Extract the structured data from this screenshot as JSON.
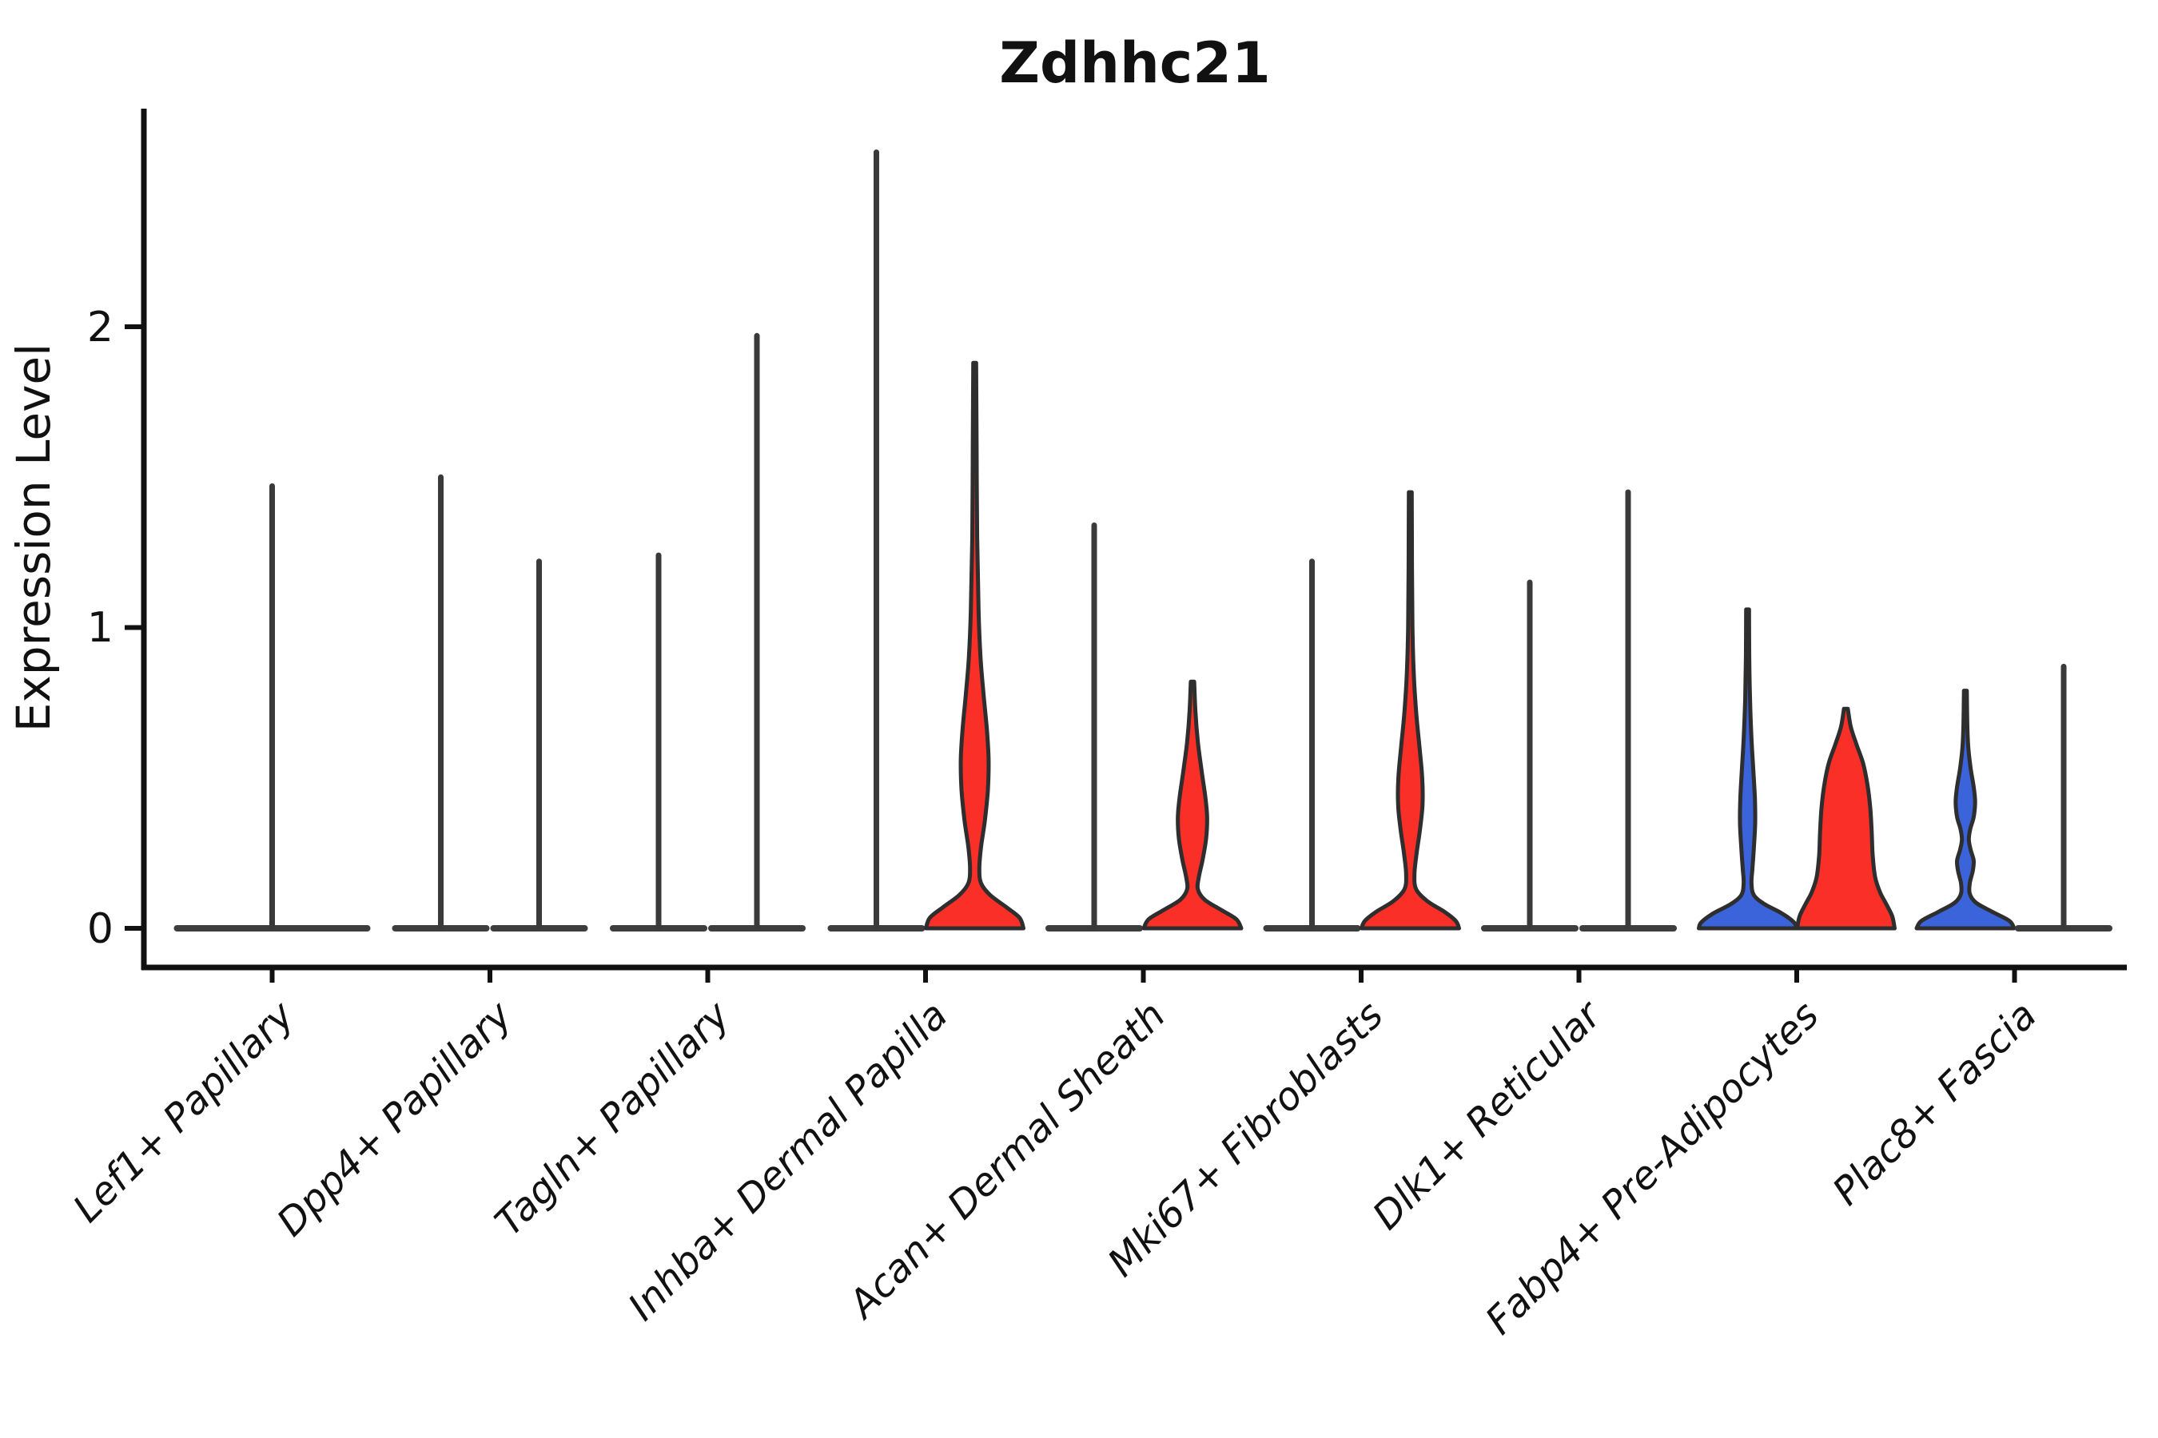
{
  "title": "Zdhhc21",
  "ylabel": "Expression Level",
  "yticks": [
    0,
    1,
    2
  ],
  "colors": {
    "red": "#fa3028",
    "blue": "#3b63da",
    "violin_outline": "#2e2e2e",
    "spike_line": "#3a3a3a",
    "flat_base": "#3d3d3d",
    "axis": "#111111",
    "background": "#ffffff"
  },
  "chart_data": {
    "type": "violin",
    "title": "Zdhhc21",
    "xlabel": "",
    "ylabel": "Expression Level",
    "ylim": [
      -0.13,
      2.72
    ],
    "yticks": [
      0,
      1,
      2
    ],
    "grid": false,
    "legend": "none",
    "note": "Split violin plot; most violins collapse to a thin spike with a flat base at 0. max = top of violin tail (expression units). profile = [expression value, half-width fraction] pairs for filled violins.",
    "categories": [
      {
        "label": "Lef1+ Papillary",
        "violins": [
          {
            "side": "full",
            "fill": "none",
            "max": 1.47
          }
        ]
      },
      {
        "label": "Dpp4+ Papillary",
        "violins": [
          {
            "side": "left",
            "fill": "none",
            "max": 1.5
          },
          {
            "side": "right",
            "fill": "none",
            "max": 1.22
          }
        ]
      },
      {
        "label": "Tagln+ Papillary",
        "violins": [
          {
            "side": "left",
            "fill": "none",
            "max": 1.24
          },
          {
            "side": "right",
            "fill": "none",
            "max": 1.97
          }
        ]
      },
      {
        "label": "Inhba+ Dermal Papilla",
        "violins": [
          {
            "side": "left",
            "fill": "none",
            "max": 2.58
          },
          {
            "side": "right",
            "fill": "red",
            "max": 1.88,
            "profile": [
              [
                1.88,
                0.03
              ],
              [
                1.6,
                0.04
              ],
              [
                1.3,
                0.05
              ],
              [
                1.05,
                0.08
              ],
              [
                0.9,
                0.12
              ],
              [
                0.78,
                0.18
              ],
              [
                0.66,
                0.25
              ],
              [
                0.56,
                0.285
              ],
              [
                0.46,
                0.27
              ],
              [
                0.36,
                0.21
              ],
              [
                0.27,
                0.13
              ],
              [
                0.2,
                0.095
              ],
              [
                0.15,
                0.13
              ],
              [
                0.11,
                0.32
              ],
              [
                0.07,
                0.65
              ],
              [
                0.035,
                0.92
              ],
              [
                0,
                1.0
              ]
            ]
          }
        ]
      },
      {
        "label": "Acan+ Dermal Sheath",
        "violins": [
          {
            "side": "left",
            "fill": "none",
            "max": 1.34
          },
          {
            "side": "right",
            "fill": "red",
            "max": 0.82,
            "profile": [
              [
                0.82,
                0.035
              ],
              [
                0.72,
                0.06
              ],
              [
                0.62,
                0.11
              ],
              [
                0.52,
                0.19
              ],
              [
                0.44,
                0.26
              ],
              [
                0.37,
                0.3
              ],
              [
                0.3,
                0.28
              ],
              [
                0.23,
                0.21
              ],
              [
                0.17,
                0.13
              ],
              [
                0.13,
                0.11
              ],
              [
                0.095,
                0.25
              ],
              [
                0.06,
                0.6
              ],
              [
                0.03,
                0.9
              ],
              [
                0,
                1.0
              ]
            ]
          }
        ]
      },
      {
        "label": "Mki67+ Fibroblasts",
        "violins": [
          {
            "side": "left",
            "fill": "none",
            "max": 1.22
          },
          {
            "side": "right",
            "fill": "red",
            "max": 1.45,
            "profile": [
              [
                1.45,
                0.03
              ],
              [
                1.2,
                0.035
              ],
              [
                1.0,
                0.045
              ],
              [
                0.85,
                0.07
              ],
              [
                0.72,
                0.12
              ],
              [
                0.6,
                0.19
              ],
              [
                0.5,
                0.245
              ],
              [
                0.41,
                0.25
              ],
              [
                0.33,
                0.2
              ],
              [
                0.25,
                0.13
              ],
              [
                0.18,
                0.085
              ],
              [
                0.13,
                0.12
              ],
              [
                0.09,
                0.35
              ],
              [
                0.055,
                0.7
              ],
              [
                0.025,
                0.93
              ],
              [
                0,
                1.0
              ]
            ]
          }
        ]
      },
      {
        "label": "Dlk1+ Reticular",
        "violins": [
          {
            "side": "left",
            "fill": "none",
            "max": 1.15
          },
          {
            "side": "right",
            "fill": "none",
            "max": 1.45
          }
        ]
      },
      {
        "label": "Fabp4+ Pre-Adipocytes",
        "violins": [
          {
            "side": "left",
            "fill": "blue",
            "max": 1.06,
            "profile": [
              [
                1.06,
                0.03
              ],
              [
                0.9,
                0.035
              ],
              [
                0.76,
                0.05
              ],
              [
                0.63,
                0.08
              ],
              [
                0.52,
                0.12
              ],
              [
                0.43,
                0.15
              ],
              [
                0.35,
                0.155
              ],
              [
                0.27,
                0.13
              ],
              [
                0.2,
                0.1
              ],
              [
                0.15,
                0.08
              ],
              [
                0.11,
                0.13
              ],
              [
                0.08,
                0.35
              ],
              [
                0.05,
                0.7
              ],
              [
                0.02,
                0.95
              ],
              [
                0,
                1.0
              ]
            ]
          },
          {
            "side": "right",
            "fill": "red",
            "max": 0.73,
            "profile": [
              [
                0.73,
                0.04
              ],
              [
                0.67,
                0.1
              ],
              [
                0.61,
                0.22
              ],
              [
                0.55,
                0.35
              ],
              [
                0.48,
                0.44
              ],
              [
                0.4,
                0.5
              ],
              [
                0.32,
                0.53
              ],
              [
                0.24,
                0.55
              ],
              [
                0.17,
                0.6
              ],
              [
                0.12,
                0.7
              ],
              [
                0.08,
                0.83
              ],
              [
                0.04,
                0.95
              ],
              [
                0,
                1.0
              ]
            ]
          }
        ]
      },
      {
        "label": "Plac8+ Fascia",
        "violins": [
          {
            "side": "left",
            "fill": "blue",
            "max": 0.79,
            "profile": [
              [
                0.79,
                0.03
              ],
              [
                0.68,
                0.04
              ],
              [
                0.6,
                0.06
              ],
              [
                0.53,
                0.11
              ],
              [
                0.47,
                0.17
              ],
              [
                0.42,
                0.2
              ],
              [
                0.37,
                0.17
              ],
              [
                0.33,
                0.1
              ],
              [
                0.295,
                0.07
              ],
              [
                0.26,
                0.11
              ],
              [
                0.225,
                0.17
              ],
              [
                0.19,
                0.15
              ],
              [
                0.15,
                0.09
              ],
              [
                0.115,
                0.09
              ],
              [
                0.085,
                0.22
              ],
              [
                0.055,
                0.55
              ],
              [
                0.025,
                0.9
              ],
              [
                0,
                1.0
              ]
            ]
          },
          {
            "side": "right",
            "fill": "none",
            "max": 0.87
          }
        ]
      }
    ]
  }
}
